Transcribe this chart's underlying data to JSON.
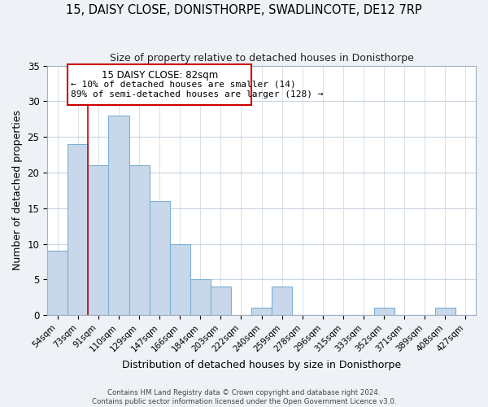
{
  "title": "15, DAISY CLOSE, DONISTHORPE, SWADLINCOTE, DE12 7RP",
  "subtitle": "Size of property relative to detached houses in Donisthorpe",
  "xlabel": "Distribution of detached houses by size in Donisthorpe",
  "ylabel": "Number of detached properties",
  "footer_line1": "Contains HM Land Registry data © Crown copyright and database right 2024.",
  "footer_line2": "Contains public sector information licensed under the Open Government Licence v3.0.",
  "bar_labels": [
    "54sqm",
    "73sqm",
    "91sqm",
    "110sqm",
    "129sqm",
    "147sqm",
    "166sqm",
    "184sqm",
    "203sqm",
    "222sqm",
    "240sqm",
    "259sqm",
    "278sqm",
    "296sqm",
    "315sqm",
    "333sqm",
    "352sqm",
    "371sqm",
    "389sqm",
    "408sqm",
    "427sqm"
  ],
  "bar_values": [
    9,
    24,
    21,
    28,
    21,
    16,
    10,
    5,
    4,
    0,
    1,
    4,
    0,
    0,
    0,
    0,
    1,
    0,
    0,
    1,
    0
  ],
  "bar_color": "#c8d8ea",
  "bar_edge_color": "#7bafd4",
  "highlight_line_color": "#cc0000",
  "annotation_box_edge_color": "#cc0000",
  "annotation_title": "15 DAISY CLOSE: 82sqm",
  "annotation_line1": "← 10% of detached houses are smaller (14)",
  "annotation_line2": "89% of semi-detached houses are larger (128) →",
  "ylim": [
    0,
    35
  ],
  "yticks": [
    0,
    5,
    10,
    15,
    20,
    25,
    30,
    35
  ],
  "background_color": "#eef2f7",
  "plot_bg_color": "#ffffff",
  "grid_color": "#c8d4e0"
}
